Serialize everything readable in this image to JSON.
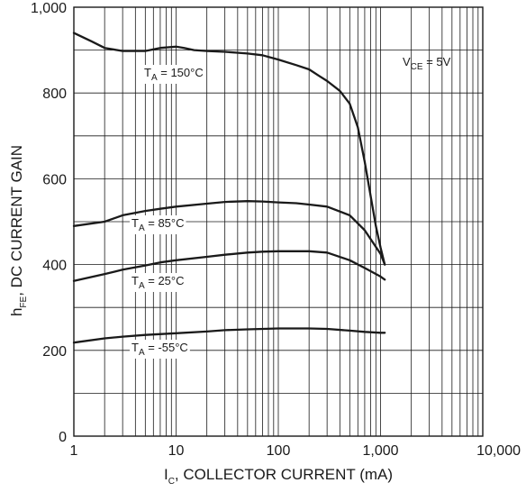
{
  "chart_data": {
    "type": "line",
    "xscale": "log",
    "xlim": [
      1,
      10000
    ],
    "ylim": [
      0,
      1000
    ],
    "grid": true,
    "x_ticks": [
      "1",
      "10",
      "100",
      "1,000",
      "10,000"
    ],
    "y_ticks": [
      "0",
      "200",
      "400",
      "600",
      "800",
      "1,000"
    ],
    "ylabel": {
      "main": "h",
      "sub": "FE",
      "rest": ", DC CURRENT GAIN"
    },
    "xlabel": {
      "main": "I",
      "sub": "C",
      "rest": ", COLLECTOR CURRENT (mA)"
    },
    "condition": {
      "main": "V",
      "sub": "CE",
      "rest": " = 5V"
    },
    "series": [
      {
        "label": {
          "main": "T",
          "sub": "A",
          "rest": " = 150°C"
        },
        "x": [
          1,
          1.5,
          2,
          3,
          5,
          7,
          10,
          12,
          15,
          20,
          30,
          50,
          70,
          100,
          150,
          200,
          250,
          300,
          400,
          500,
          600,
          700,
          800,
          900,
          1000,
          1100
        ],
        "y": [
          940,
          920,
          905,
          898,
          898,
          905,
          908,
          905,
          900,
          898,
          896,
          892,
          888,
          878,
          865,
          855,
          840,
          828,
          805,
          775,
          720,
          640,
          560,
          490,
          440,
          400
        ]
      },
      {
        "label": {
          "main": "T",
          "sub": "A",
          "rest": " = 85°C"
        },
        "x": [
          1,
          2,
          3,
          5,
          7,
          10,
          20,
          30,
          50,
          70,
          100,
          150,
          200,
          300,
          500,
          700,
          1000,
          1100
        ],
        "y": [
          490,
          500,
          515,
          525,
          530,
          535,
          542,
          546,
          548,
          547,
          545,
          543,
          540,
          535,
          515,
          480,
          425,
          400
        ]
      },
      {
        "label": {
          "main": "T",
          "sub": "A",
          "rest": " = 25°C"
        },
        "x": [
          1,
          2,
          3,
          5,
          7,
          10,
          20,
          30,
          50,
          70,
          100,
          200,
          300,
          500,
          700,
          1000,
          1100
        ],
        "y": [
          362,
          378,
          388,
          398,
          405,
          410,
          418,
          423,
          428,
          430,
          431,
          431,
          428,
          410,
          392,
          372,
          365
        ]
      },
      {
        "label": {
          "main": "T",
          "sub": "A",
          "rest": " = -55°C"
        },
        "x": [
          1,
          2,
          3,
          5,
          10,
          20,
          30,
          50,
          100,
          200,
          300,
          500,
          700,
          1000,
          1100
        ],
        "y": [
          218,
          228,
          232,
          236,
          240,
          244,
          247,
          249,
          251,
          251,
          250,
          246,
          243,
          241,
          241
        ]
      }
    ]
  }
}
